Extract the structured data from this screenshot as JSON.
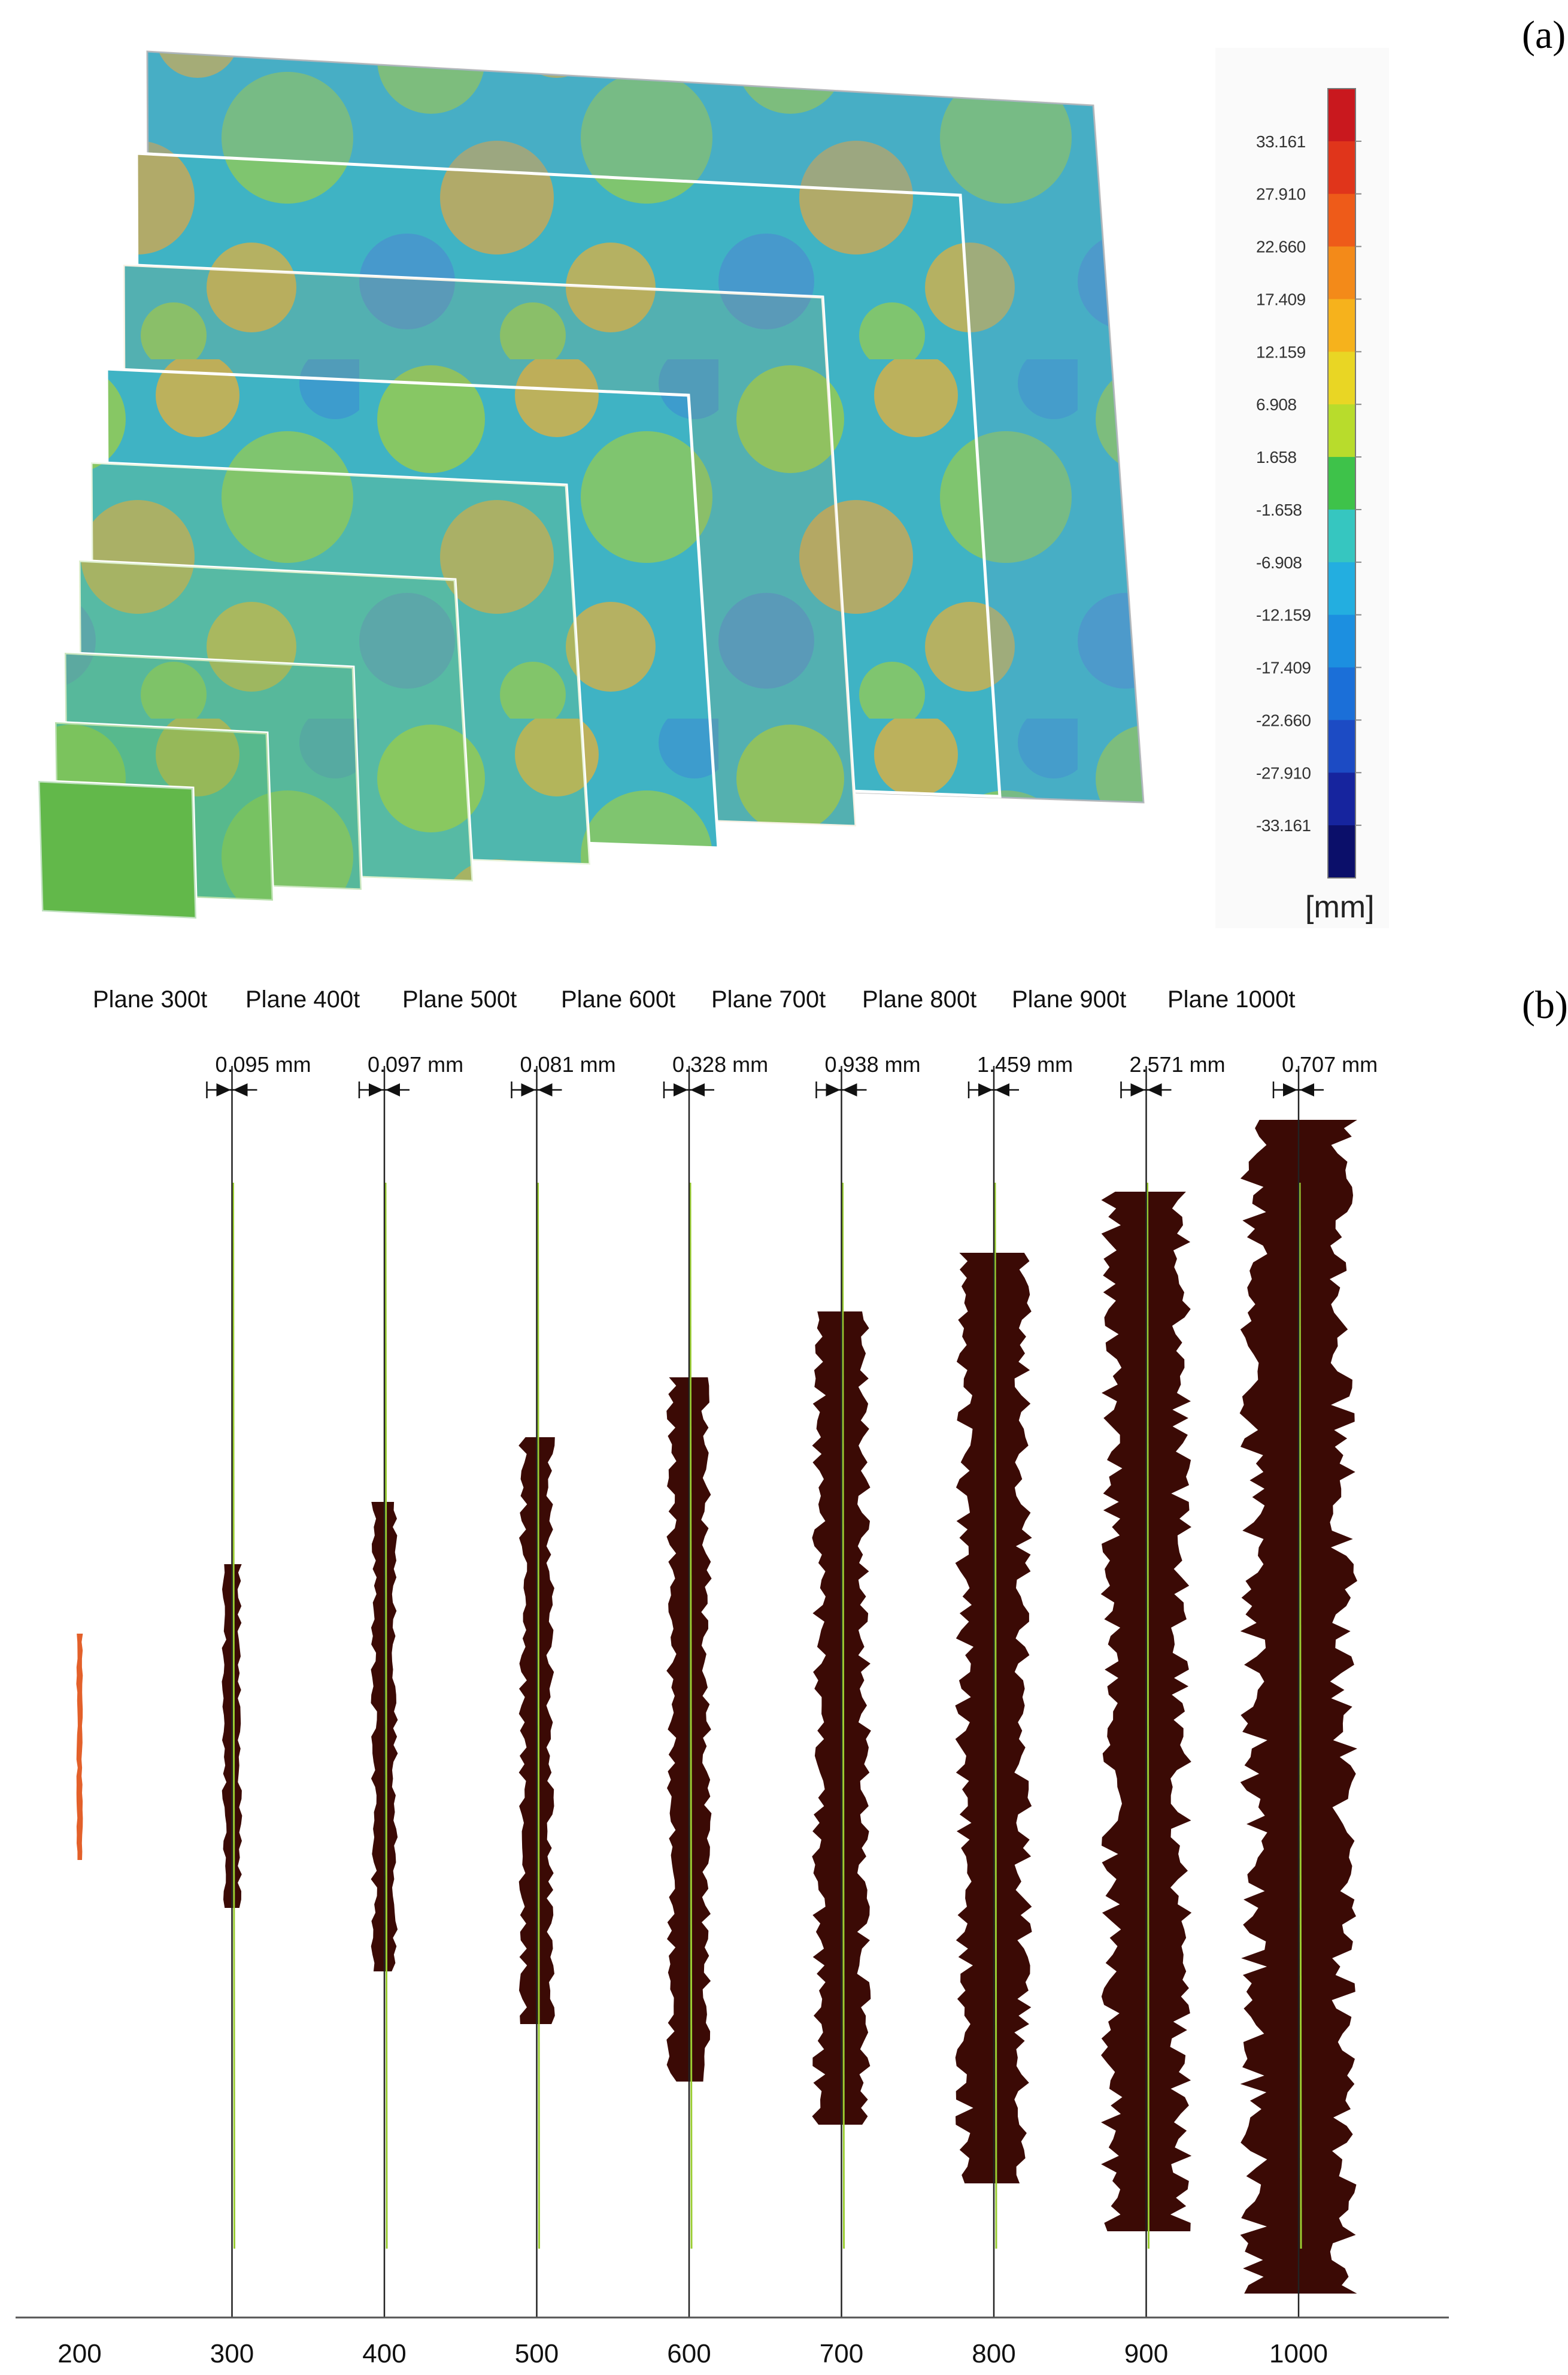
{
  "panel_a": {
    "label": "(a)",
    "colorbar": {
      "unit": "[mm]",
      "ticks": [
        "33.161",
        "27.910",
        "22.660",
        "17.409",
        "12.159",
        "6.908",
        "1.658",
        "-1.658",
        "-6.908",
        "-12.159",
        "-17.409",
        "-22.660",
        "-27.910",
        "-33.161"
      ],
      "colors": [
        "#c9181e",
        "#e0351b",
        "#ee5b19",
        "#f38a19",
        "#f6b21c",
        "#e9d624",
        "#b8dc2c",
        "#3ec24a",
        "#36c6c0",
        "#23aee0",
        "#1c8fe0",
        "#1b6fd8",
        "#1c4bc4",
        "#16249e",
        "#0b0f6a"
      ]
    },
    "stacked_maps_count": 9
  },
  "panel_b": {
    "label": "(b)",
    "plane_labels": [
      "Plane 300t",
      "Plane 400t",
      "Plane 500t",
      "Plane 600t",
      "Plane 700t",
      "Plane 800t",
      "Plane 900t",
      "Plane 1000t"
    ],
    "gaps": [
      {
        "position": 300,
        "label": "0.095 mm"
      },
      {
        "position": 400,
        "label": "0.097 mm"
      },
      {
        "position": 500,
        "label": "0.081 mm"
      },
      {
        "position": 600,
        "label": "0.328 mm"
      },
      {
        "position": 700,
        "label": "0.938 mm"
      },
      {
        "position": 800,
        "label": "1.459 mm"
      },
      {
        "position": 900,
        "label": "2.571 mm"
      },
      {
        "position": 1000,
        "label": "0.707 mm"
      }
    ],
    "x_ticks": [
      "200",
      "300",
      "400",
      "500",
      "600",
      "700",
      "800",
      "900",
      "1000"
    ],
    "profile_color": "#3b0a05",
    "reference_profile_color": "#e3602a",
    "reference_line_color": "#9acd32"
  }
}
